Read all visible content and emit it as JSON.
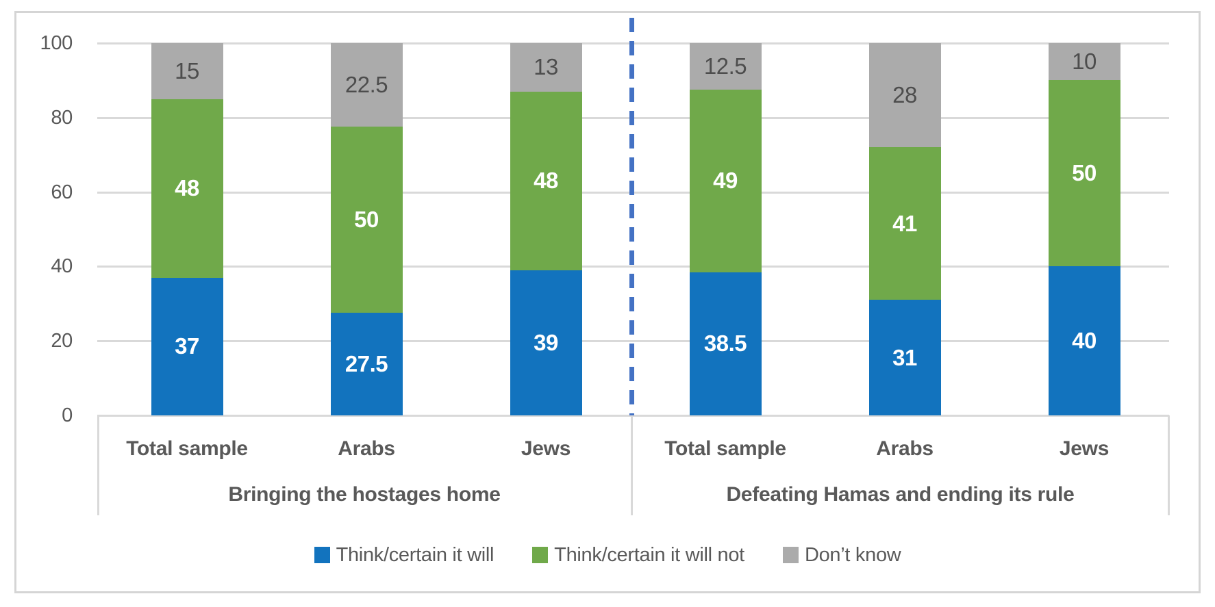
{
  "chart_data": {
    "type": "bar",
    "stacked": true,
    "title": "",
    "categories": [
      "Total sample",
      "Arabs",
      "Jews",
      "Total sample",
      "Arabs",
      "Jews"
    ],
    "category_groups": [
      {
        "label": "Bringing the hostages home",
        "span": [
          0,
          2
        ]
      },
      {
        "label": "Defeating Hamas and ending its rule",
        "span": [
          3,
          5
        ]
      }
    ],
    "series": [
      {
        "name": "Think/certain it will",
        "color": "#1273be",
        "label_color": "#ffffff",
        "label_bold": true,
        "values": [
          37,
          27.5,
          39,
          38.5,
          31,
          40
        ]
      },
      {
        "name": "Think/certain it will not",
        "color": "#70a94a",
        "label_color": "#ffffff",
        "label_bold": true,
        "values": [
          48,
          50,
          48,
          49,
          41,
          50
        ]
      },
      {
        "name": "Don’t know",
        "color": "#ababab",
        "label_color": "#4d4d4d",
        "label_bold": false,
        "values": [
          15,
          22.5,
          13,
          12.5,
          28,
          10
        ]
      }
    ],
    "y_axis": {
      "min": 0,
      "max": 100,
      "tick_interval": 20,
      "tick_labels": [
        "0",
        "20",
        "40",
        "60",
        "80",
        "100"
      ]
    },
    "grid": true,
    "legend_position": "bottom",
    "divider": {
      "style": "dashed",
      "color": "#4472c4",
      "between_groups": true
    },
    "style": {
      "gridline_color": "#d9d9d9",
      "frame_border_color": "#d5d5d5",
      "axis_text_color": "#595959"
    }
  }
}
